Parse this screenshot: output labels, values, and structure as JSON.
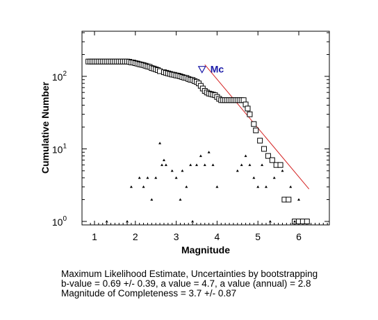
{
  "chart_data": {
    "type": "scatter",
    "xlabel": "Magnitude",
    "ylabel": "Cumulative Number",
    "xlim": [
      0.8,
      6.75
    ],
    "ylim_log10": [
      -0.08,
      0.6
    ],
    "x_ticks": [
      "1",
      "2",
      "3",
      "4",
      "5",
      "6"
    ],
    "x_tick_values": [
      1,
      2,
      3,
      4,
      5,
      6
    ],
    "y_ticks": [
      {
        "base": "10",
        "exp": "0",
        "value": 1
      },
      {
        "base": "10",
        "exp": "1",
        "value": 10
      },
      {
        "base": "10",
        "exp": "2",
        "value": 100
      }
    ],
    "scale": "log-y",
    "grid": false,
    "series": [
      {
        "marker": "square",
        "points": [
          [
            0.85,
            160
          ],
          [
            0.9,
            160
          ],
          [
            0.95,
            160
          ],
          [
            1.0,
            160
          ],
          [
            1.05,
            160
          ],
          [
            1.1,
            160
          ],
          [
            1.15,
            160
          ],
          [
            1.2,
            160
          ],
          [
            1.25,
            160
          ],
          [
            1.3,
            160
          ],
          [
            1.35,
            160
          ],
          [
            1.4,
            160
          ],
          [
            1.45,
            160
          ],
          [
            1.5,
            160
          ],
          [
            1.55,
            160
          ],
          [
            1.6,
            160
          ],
          [
            1.65,
            160
          ],
          [
            1.7,
            160
          ],
          [
            1.75,
            160
          ],
          [
            1.8,
            160
          ],
          [
            1.85,
            159
          ],
          [
            1.9,
            156
          ],
          [
            1.95,
            155
          ],
          [
            2.0,
            152
          ],
          [
            2.05,
            150
          ],
          [
            2.1,
            147
          ],
          [
            2.15,
            145
          ],
          [
            2.2,
            143
          ],
          [
            2.25,
            140
          ],
          [
            2.3,
            137
          ],
          [
            2.35,
            135
          ],
          [
            2.4,
            130
          ],
          [
            2.45,
            128
          ],
          [
            2.5,
            125
          ],
          [
            2.55,
            122
          ],
          [
            2.6,
            118
          ],
          [
            2.7,
            114
          ],
          [
            2.75,
            112
          ],
          [
            2.8,
            110
          ],
          [
            2.85,
            108
          ],
          [
            2.9,
            106
          ],
          [
            2.95,
            105
          ],
          [
            3.0,
            103
          ],
          [
            3.05,
            102
          ],
          [
            3.1,
            100
          ],
          [
            3.15,
            98
          ],
          [
            3.2,
            96
          ],
          [
            3.25,
            95
          ],
          [
            3.3,
            92
          ],
          [
            3.35,
            90
          ],
          [
            3.4,
            89
          ],
          [
            3.45,
            86
          ],
          [
            3.5,
            84
          ],
          [
            3.55,
            80
          ],
          [
            3.6,
            74
          ],
          [
            3.65,
            68
          ],
          [
            3.7,
            63
          ],
          [
            3.75,
            60
          ],
          [
            3.8,
            58
          ],
          [
            3.85,
            57
          ],
          [
            3.9,
            56
          ],
          [
            3.95,
            55
          ],
          [
            4.0,
            52
          ],
          [
            4.05,
            49
          ],
          [
            4.1,
            47
          ],
          [
            4.15,
            47
          ],
          [
            4.2,
            47
          ],
          [
            4.25,
            47
          ],
          [
            4.3,
            47
          ],
          [
            4.35,
            47
          ],
          [
            4.4,
            47
          ],
          [
            4.45,
            47
          ],
          [
            4.5,
            47
          ],
          [
            4.55,
            47
          ],
          [
            4.6,
            47
          ],
          [
            4.65,
            47
          ],
          [
            4.7,
            41
          ],
          [
            4.75,
            36
          ],
          [
            4.8,
            30
          ],
          [
            4.9,
            22
          ],
          [
            4.95,
            18
          ],
          [
            5.05,
            13
          ],
          [
            5.15,
            10
          ],
          [
            5.25,
            8
          ],
          [
            5.35,
            7
          ],
          [
            5.45,
            6
          ],
          [
            5.55,
            6
          ],
          [
            5.65,
            2
          ],
          [
            5.75,
            2
          ],
          [
            5.9,
            1
          ],
          [
            6.0,
            1
          ],
          [
            6.1,
            1
          ],
          [
            6.2,
            1
          ]
        ]
      },
      {
        "marker": "triangle",
        "points": [
          [
            1.3,
            1
          ],
          [
            1.8,
            1
          ],
          [
            1.9,
            3
          ],
          [
            2.1,
            4
          ],
          [
            2.2,
            3
          ],
          [
            2.3,
            4
          ],
          [
            2.4,
            2
          ],
          [
            2.5,
            4
          ],
          [
            2.6,
            12
          ],
          [
            2.65,
            6
          ],
          [
            2.7,
            7
          ],
          [
            2.75,
            6
          ],
          [
            2.9,
            5
          ],
          [
            3.0,
            4
          ],
          [
            3.1,
            2
          ],
          [
            3.15,
            5
          ],
          [
            3.25,
            3
          ],
          [
            3.35,
            6
          ],
          [
            3.4,
            1
          ],
          [
            3.5,
            6
          ],
          [
            3.6,
            8
          ],
          [
            3.7,
            6
          ],
          [
            3.8,
            9
          ],
          [
            3.9,
            6
          ],
          [
            4.0,
            3
          ],
          [
            4.5,
            5
          ],
          [
            4.6,
            6
          ],
          [
            4.7,
            8
          ],
          [
            4.8,
            6
          ],
          [
            4.9,
            4
          ],
          [
            5.0,
            3
          ],
          [
            5.1,
            6
          ],
          [
            5.2,
            3
          ],
          [
            5.3,
            1
          ],
          [
            5.4,
            4
          ],
          [
            5.6,
            5
          ],
          [
            5.8,
            3
          ],
          [
            5.9,
            1
          ],
          [
            6.0,
            2
          ]
        ]
      }
    ],
    "fit_line": {
      "color": "#d42020",
      "from": [
        3.7,
        145
      ],
      "to": [
        6.25,
        2.8
      ]
    },
    "mc_marker": {
      "x": 3.7,
      "y": 110,
      "label": "Mc",
      "color": "#1a1aa8"
    }
  },
  "caption": {
    "line1": "Maximum Likelihood Estimate, Uncertainties by bootstrapping",
    "line2": "b-value = 0.69 +/- 0.39,  a value = 4.7,  a value (annual) = 2.8",
    "line3": "Magnitude of Completeness = 3.7 +/- 0.87"
  }
}
